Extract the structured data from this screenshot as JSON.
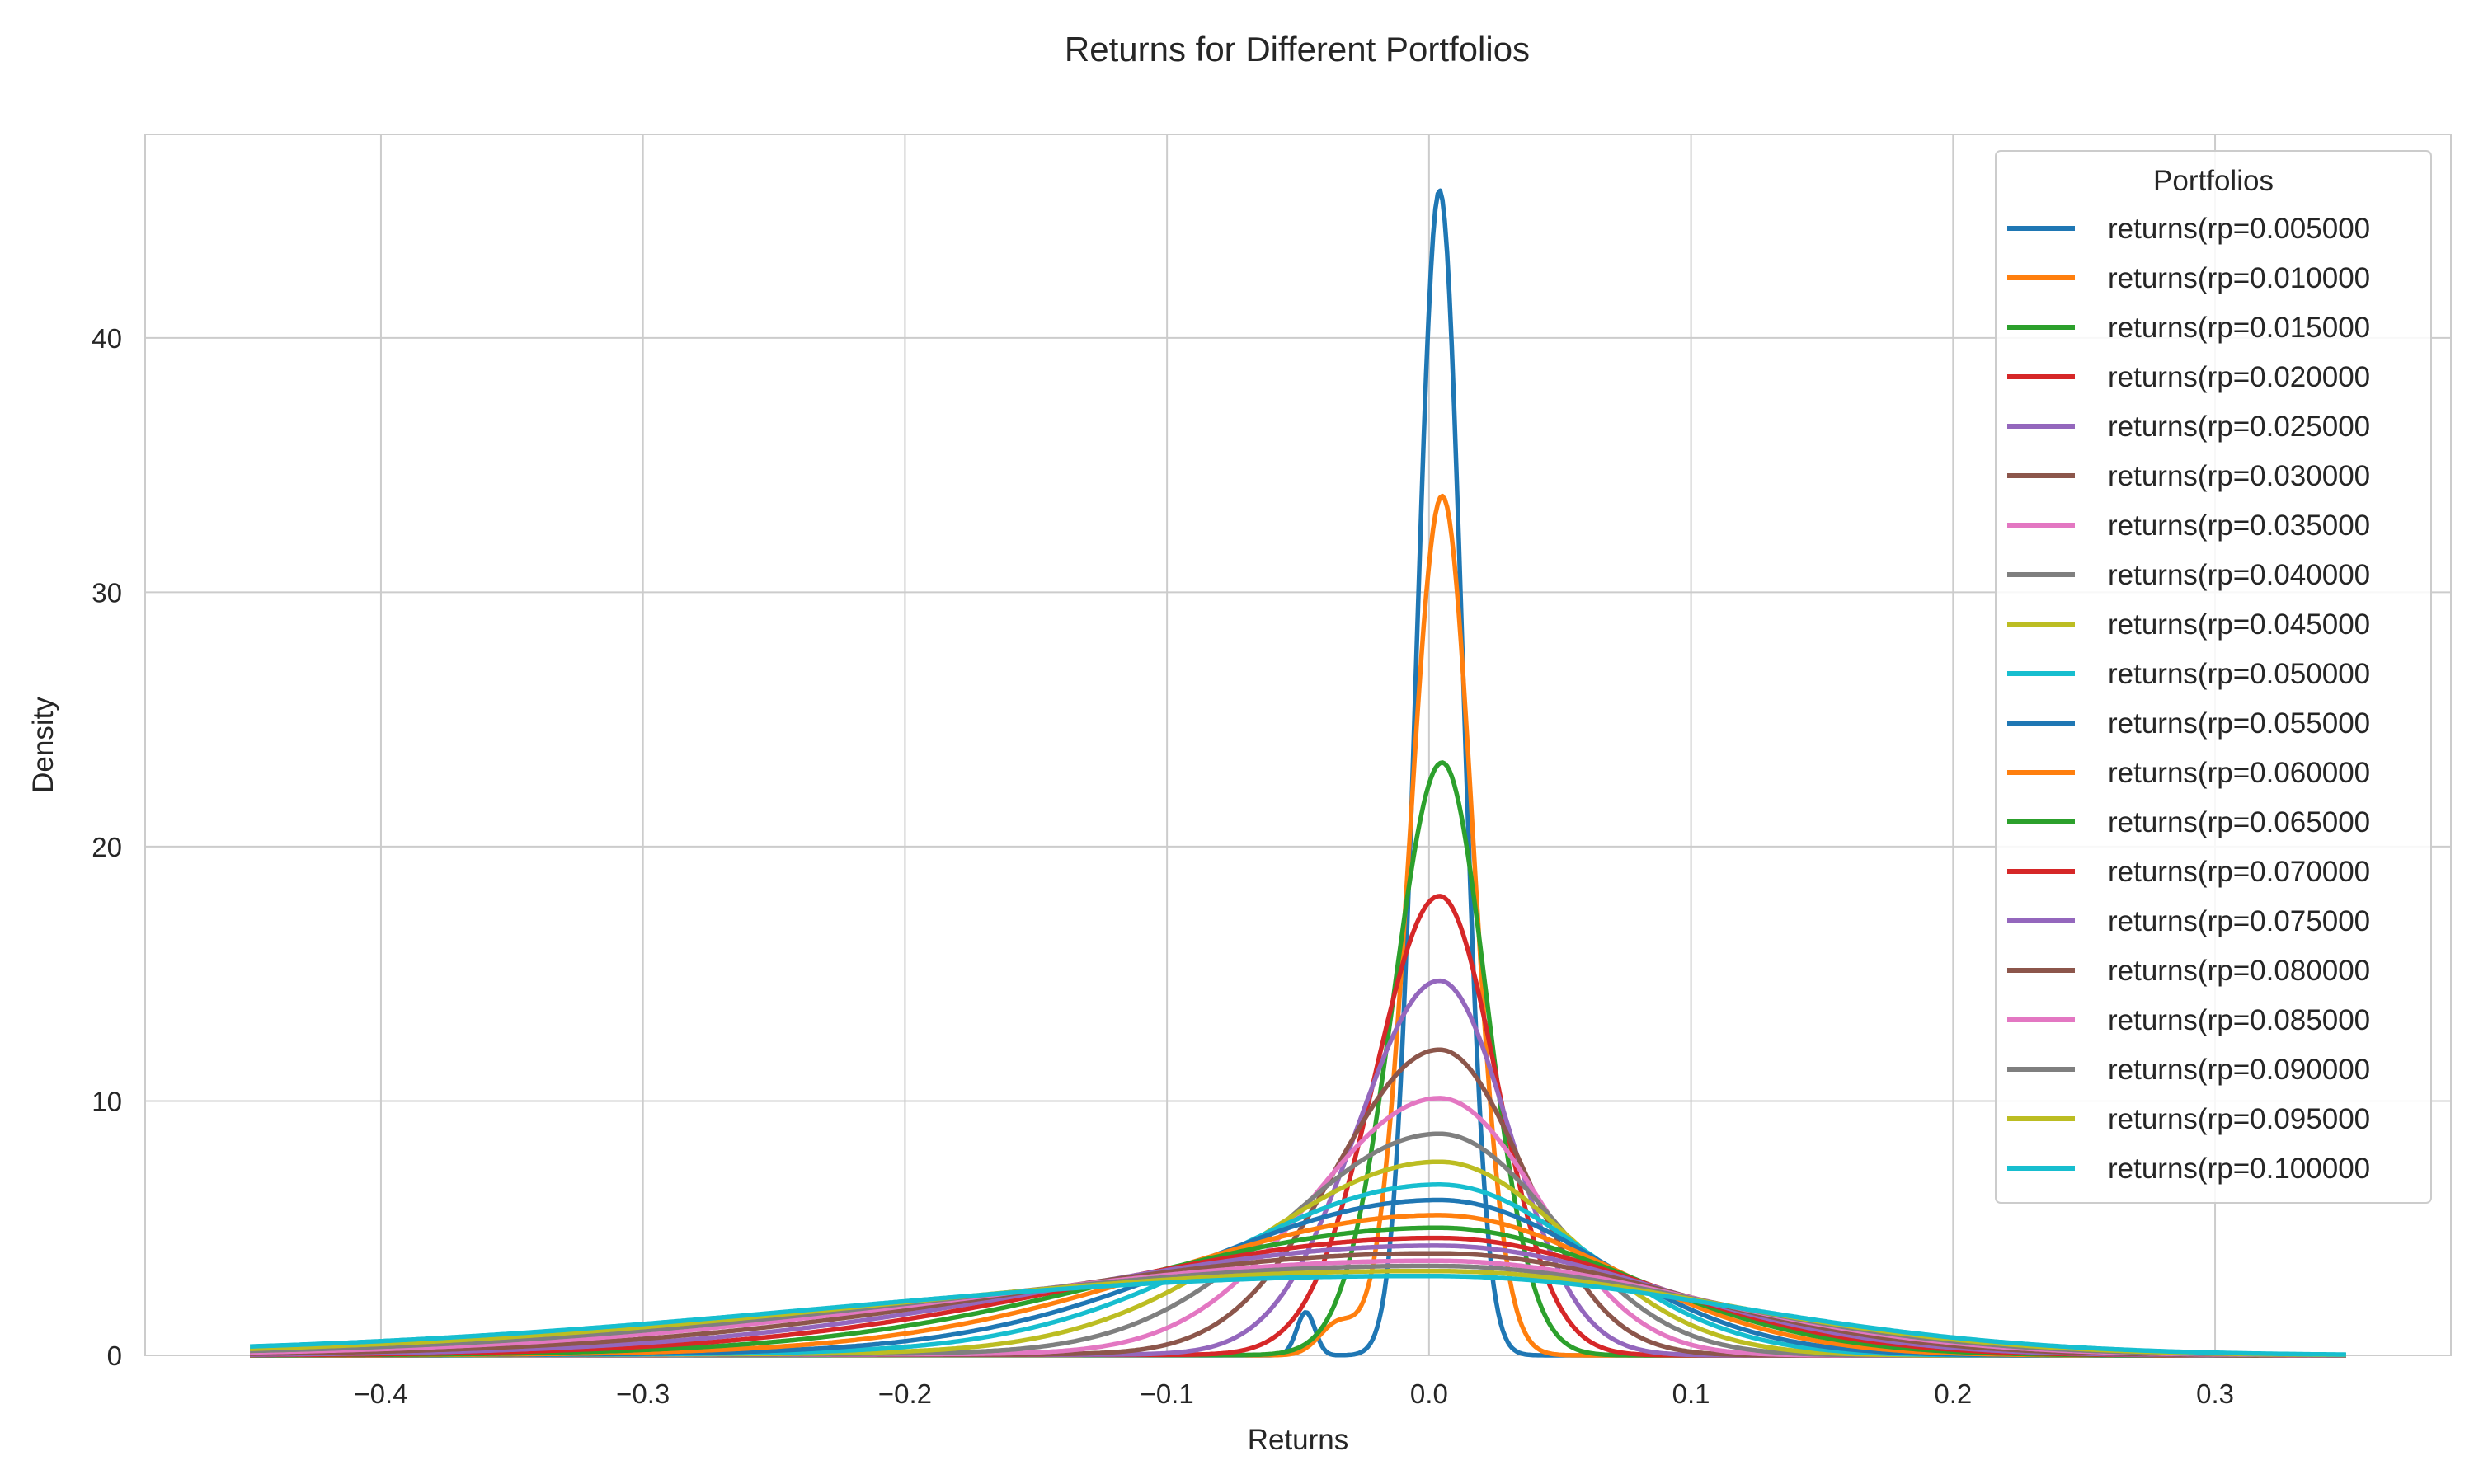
{
  "chart_data": {
    "type": "line",
    "title": "Returns for Different Portfolios",
    "xlabel": "Returns",
    "ylabel": "Density",
    "xlim": [
      -0.49,
      0.39
    ],
    "ylim": [
      0,
      48
    ],
    "xticks": [
      -0.4,
      -0.3,
      -0.2,
      -0.1,
      0.0,
      0.1,
      0.2,
      0.3
    ],
    "xtick_labels": [
      "−0.4",
      "−0.3",
      "−0.2",
      "−0.1",
      "0.0",
      "0.1",
      "0.2",
      "0.3"
    ],
    "yticks": [
      0,
      10,
      20,
      30,
      40
    ],
    "ytick_labels": [
      "0",
      "10",
      "20",
      "30",
      "40"
    ],
    "grid": true,
    "legend": {
      "title": "Portfolios",
      "placement": "top-right"
    },
    "series": [
      {
        "name": "returns(rp=0.005000",
        "color": "#1f77b4",
        "peak": 45.8,
        "mu": 0.004
      },
      {
        "name": "returns(rp=0.010000",
        "color": "#ff7f0e",
        "peak": 34.0,
        "mu": 0.005
      },
      {
        "name": "returns(rp=0.015000",
        "color": "#2ca02c",
        "peak": 23.6,
        "mu": 0.005
      },
      {
        "name": "returns(rp=0.020000",
        "color": "#d62728",
        "peak": 18.4,
        "mu": 0.004
      },
      {
        "name": "returns(rp=0.025000",
        "color": "#9467bd",
        "peak": 15.1,
        "mu": 0.004
      },
      {
        "name": "returns(rp=0.030000",
        "color": "#8c564b",
        "peak": 12.4,
        "mu": 0.004
      },
      {
        "name": "returns(rp=0.035000",
        "color": "#e377c2",
        "peak": 10.5,
        "mu": 0.004
      },
      {
        "name": "returns(rp=0.040000",
        "color": "#7f7f7f",
        "peak": 9.1,
        "mu": 0.004
      },
      {
        "name": "returns(rp=0.045000",
        "color": "#bcbd22",
        "peak": 8.0,
        "mu": 0.004
      },
      {
        "name": "returns(rp=0.050000",
        "color": "#17becf",
        "peak": 7.1,
        "mu": 0.004
      },
      {
        "name": "returns(rp=0.055000",
        "color": "#1f77b4",
        "peak": 6.5,
        "mu": 0.004
      },
      {
        "name": "returns(rp=0.060000",
        "color": "#ff7f0e",
        "peak": 5.9,
        "mu": 0.004
      },
      {
        "name": "returns(rp=0.065000",
        "color": "#2ca02c",
        "peak": 5.4,
        "mu": 0.004
      },
      {
        "name": "returns(rp=0.070000",
        "color": "#d62728",
        "peak": 5.0,
        "mu": 0.004
      },
      {
        "name": "returns(rp=0.075000",
        "color": "#9467bd",
        "peak": 4.7,
        "mu": 0.004
      },
      {
        "name": "returns(rp=0.080000",
        "color": "#8c564b",
        "peak": 4.4,
        "mu": 0.004
      },
      {
        "name": "returns(rp=0.085000",
        "color": "#e377c2",
        "peak": 4.1,
        "mu": 0.004
      },
      {
        "name": "returns(rp=0.090000",
        "color": "#7f7f7f",
        "peak": 3.9,
        "mu": 0.004
      },
      {
        "name": "returns(rp=0.095000",
        "color": "#bcbd22",
        "peak": 3.7,
        "mu": 0.004
      },
      {
        "name": "returns(rp=0.100000",
        "color": "#17becf",
        "peak": 3.5,
        "mu": 0.004
      }
    ]
  }
}
